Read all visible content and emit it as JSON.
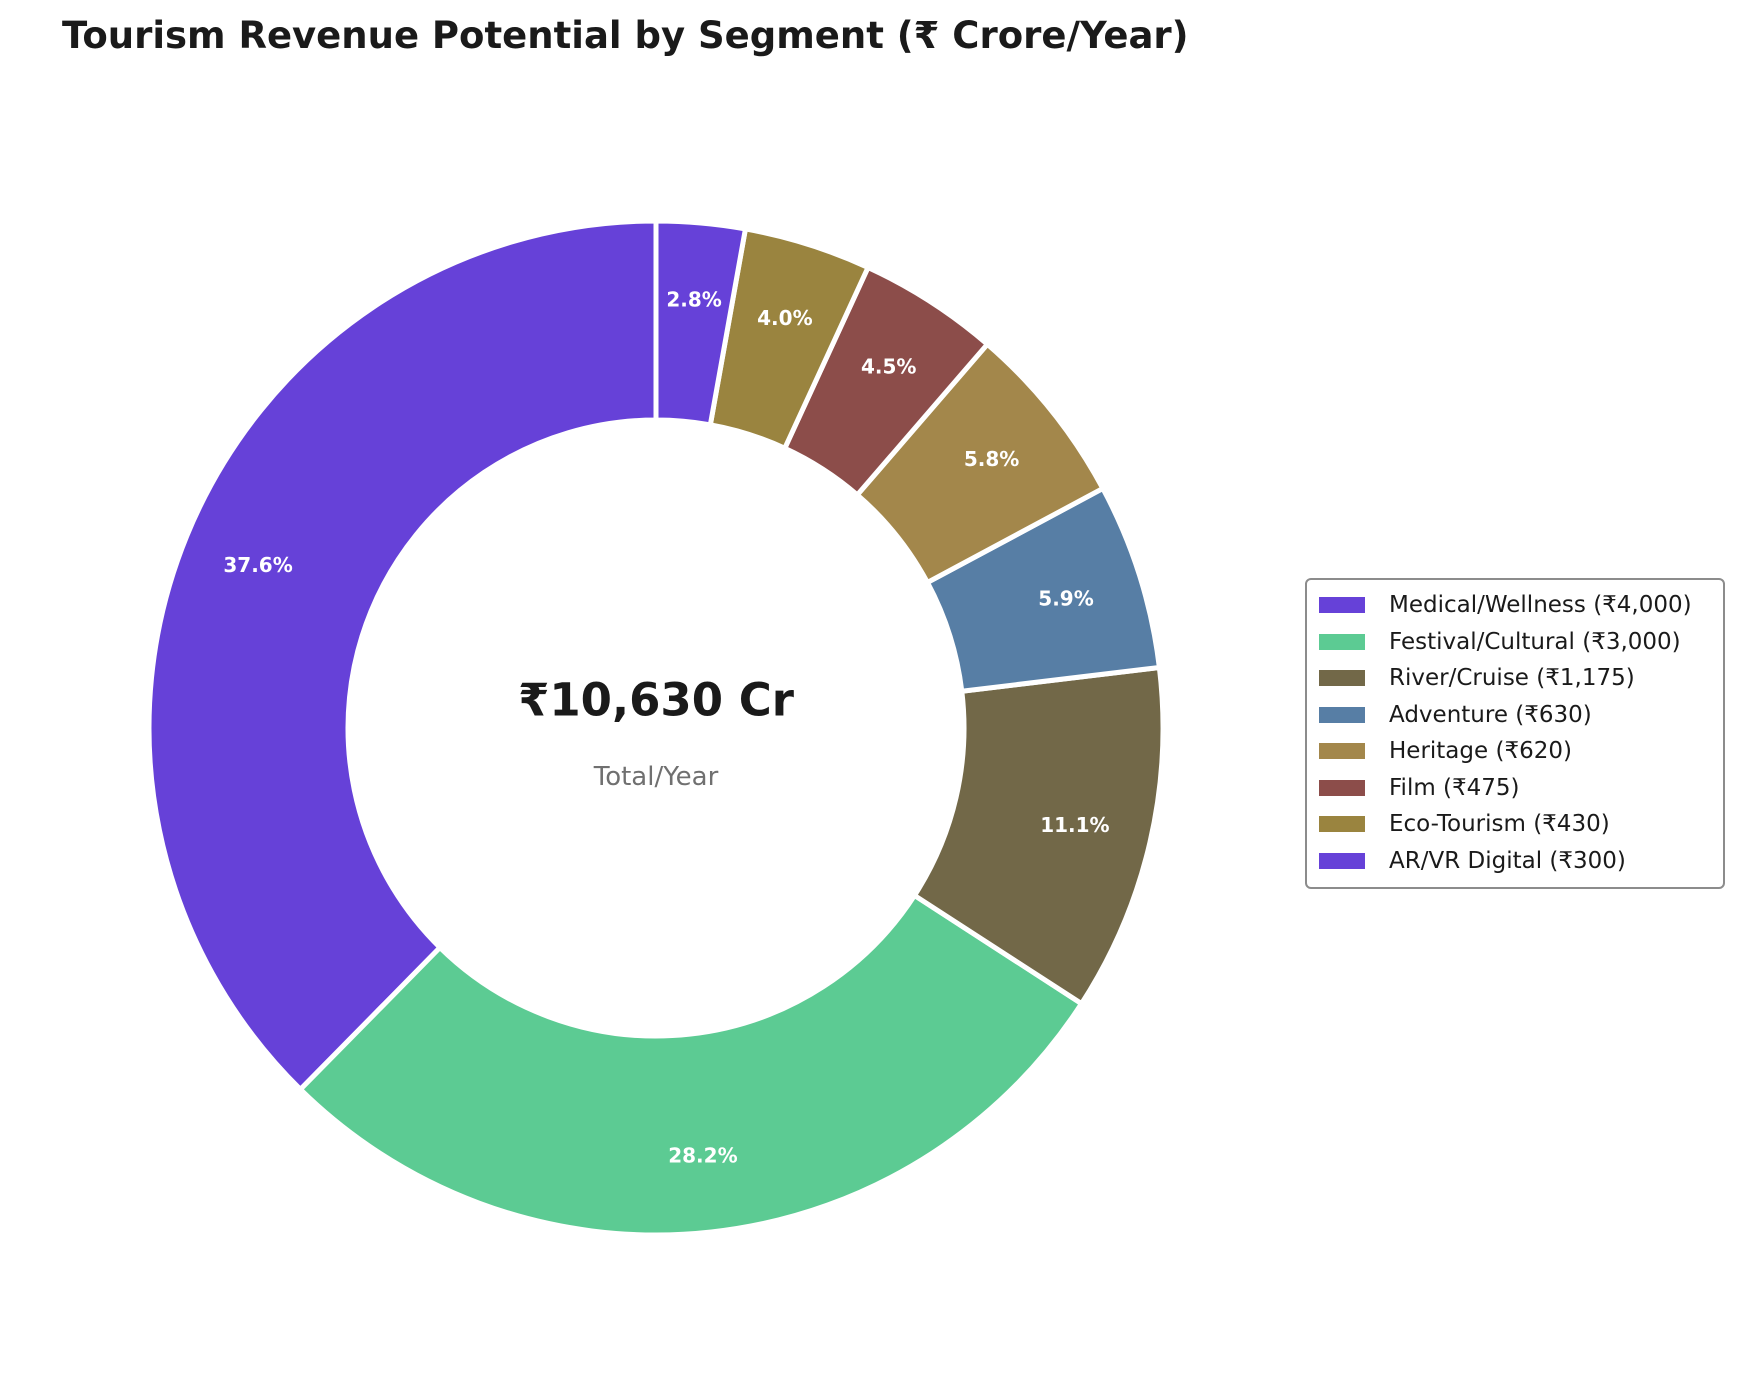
{
  "chart_data": {
    "type": "pie",
    "title": "Tourism Revenue Potential by Segment (₹ Crore/Year)",
    "center_total": "₹10,630 Cr",
    "center_subtitle": "Total/Year",
    "legend_placement": "right",
    "slices": [
      {
        "label": "Medical/Wellness",
        "value": 4000,
        "legend_text": "Medical/Wellness (₹4,000)",
        "pct_label": "37.6%",
        "color": "#6641D8"
      },
      {
        "label": "Festival/Cultural",
        "value": 3000,
        "legend_text": "Festival/Cultural (₹3,000)",
        "pct_label": "28.2%",
        "color": "#5CCB93"
      },
      {
        "label": "River/Cruise",
        "value": 1175,
        "legend_text": "River/Cruise (₹1,175)",
        "pct_label": "11.1%",
        "color": "#726848"
      },
      {
        "label": "Adventure",
        "value": 630,
        "legend_text": "Adventure (₹630)",
        "pct_label": "5.9%",
        "color": "#577EA5"
      },
      {
        "label": "Heritage",
        "value": 620,
        "legend_text": "Heritage (₹620)",
        "pct_label": "5.8%",
        "color": "#A3874B"
      },
      {
        "label": "Film",
        "value": 475,
        "legend_text": "Film (₹475)",
        "pct_label": "4.5%",
        "color": "#8C4D4A"
      },
      {
        "label": "Eco-Tourism",
        "value": 430,
        "legend_text": "Eco-Tourism (₹430)",
        "pct_label": "4.0%",
        "color": "#9A843F"
      },
      {
        "label": "AR/VR Digital",
        "value": 300,
        "legend_text": "AR/VR Digital (₹300)",
        "pct_label": "2.8%",
        "color": "#6641D8"
      }
    ]
  }
}
